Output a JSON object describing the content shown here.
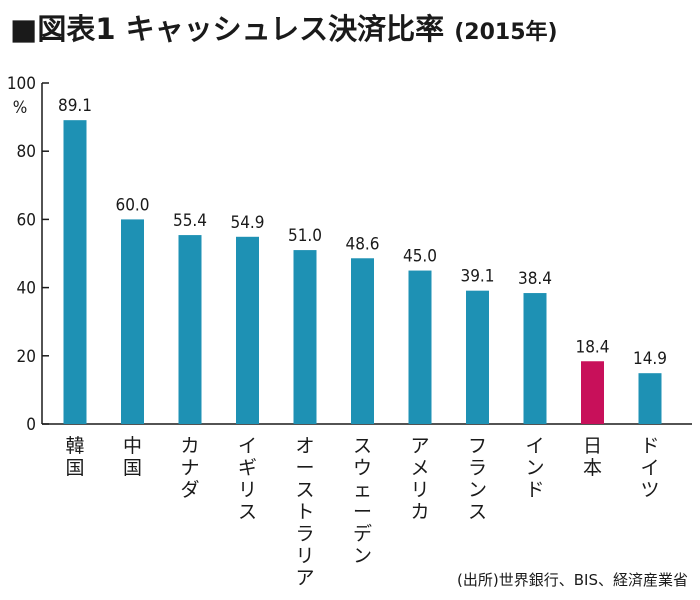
{
  "title": {
    "main": "■図表1 キャッシュレス決済比率",
    "year": "(2015年)"
  },
  "source": "(出所)世界銀行、BIS、経済産業省",
  "colors": {
    "bar": "#1e91b4",
    "highlight": "#c8105a",
    "axis": "#1a1a1a"
  },
  "chart_data": {
    "type": "bar",
    "categories": [
      "韓国",
      "中国",
      "カナダ",
      "イギリス",
      "オーストラリア",
      "スウェーデン",
      "アメリカ",
      "フランス",
      "インド",
      "日本",
      "ドイツ"
    ],
    "values": [
      89.1,
      60.0,
      55.4,
      54.9,
      51.0,
      48.6,
      45.0,
      39.1,
      38.4,
      18.4,
      14.9
    ],
    "value_labels": [
      "89.1",
      "60.0",
      "55.4",
      "54.9",
      "51.0",
      "48.6",
      "45.0",
      "39.1",
      "38.4",
      "18.4",
      "14.9"
    ],
    "highlight_category": "日本",
    "ylim": [
      0,
      100
    ],
    "yticks": [
      "0",
      "20",
      "40",
      "60",
      "80",
      "100"
    ],
    "yunit": "%",
    "grid": false,
    "legend": "none"
  }
}
